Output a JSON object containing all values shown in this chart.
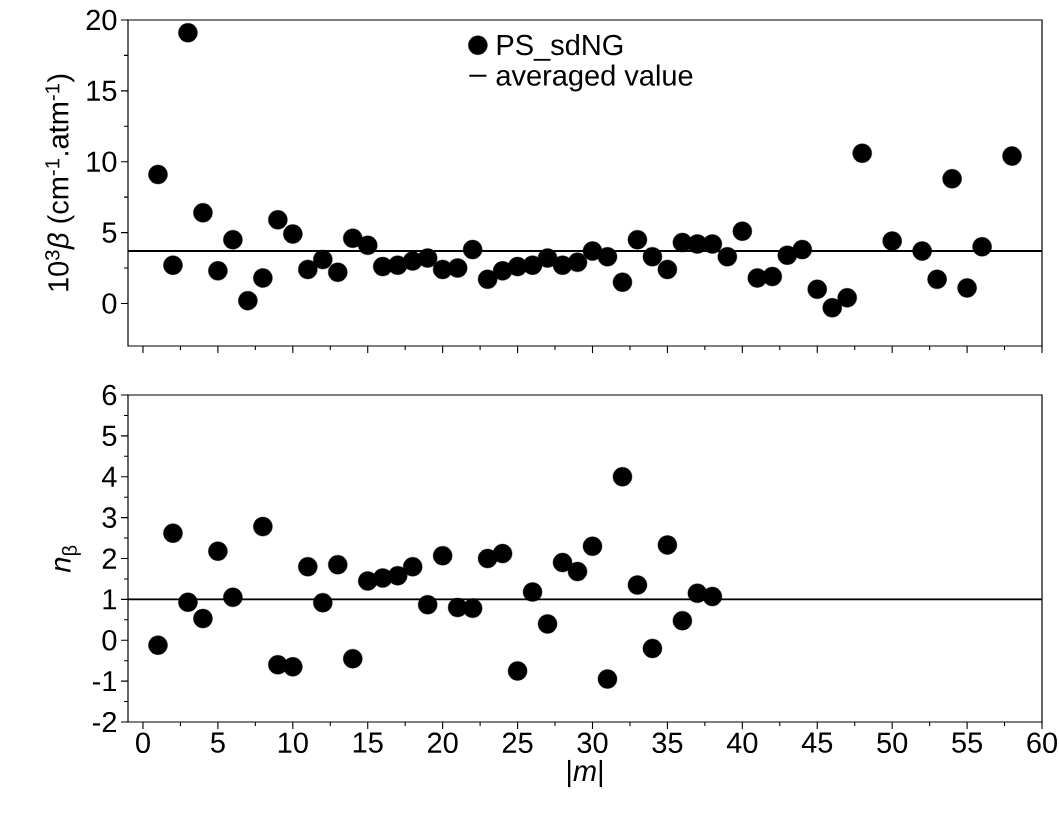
{
  "chart_data": [
    {
      "type": "scatter",
      "ylabel": "10$^{3}$*β* (cm$^{-1}$.atm$^{-1}$)",
      "xlim": [
        -1,
        60
      ],
      "xticks": [
        0,
        5,
        10,
        15,
        20,
        25,
        30,
        35,
        40,
        45,
        50,
        55,
        60
      ],
      "ylim": [
        -3,
        20
      ],
      "yticks": [
        0,
        5,
        10,
        15,
        20
      ],
      "tick_labels": "y",
      "marker": "circle",
      "legend": "top",
      "series": [
        {
          "name": "PS_sdNG",
          "color": "#000000",
          "x": [
            1,
            2,
            3,
            4,
            5,
            6,
            7,
            8,
            9,
            10,
            11,
            12,
            13,
            14,
            15,
            16,
            17,
            18,
            19,
            20,
            21,
            22,
            23,
            24,
            25,
            26,
            27,
            28,
            29,
            30,
            31,
            32,
            33,
            34,
            35,
            36,
            37,
            38,
            39,
            40,
            41,
            42,
            43,
            44,
            45,
            46,
            47,
            48,
            50,
            52,
            53,
            54,
            55,
            56,
            58
          ],
          "values": [
            9.1,
            2.7,
            19.1,
            6.4,
            2.3,
            4.5,
            0.2,
            1.8,
            5.9,
            4.9,
            2.4,
            3.1,
            2.2,
            4.6,
            4.1,
            2.6,
            2.7,
            3.0,
            3.2,
            2.4,
            2.5,
            3.8,
            1.7,
            2.3,
            2.6,
            2.7,
            3.2,
            2.7,
            2.9,
            3.7,
            3.3,
            1.5,
            4.5,
            3.3,
            2.4,
            4.3,
            4.2,
            4.2,
            3.3,
            5.1,
            1.8,
            1.9,
            3.4,
            3.8,
            1.0,
            -0.3,
            0.4,
            10.6,
            4.4,
            3.7,
            1.7,
            8.8,
            1.1,
            4.0,
            10.4
          ]
        }
      ],
      "ref_lines": [
        {
          "axis": "y",
          "value": 3.7,
          "label": "averaged value",
          "color": "#000000"
        }
      ]
    },
    {
      "type": "scatter",
      "ylabel": "*n*$_{β}$",
      "xlabel": "|*m*|",
      "xlim": [
        -1,
        60
      ],
      "xticks": [
        0,
        5,
        10,
        15,
        20,
        25,
        30,
        35,
        40,
        45,
        50,
        55,
        60
      ],
      "ylim": [
        -2,
        6
      ],
      "yticks": [
        -2,
        -1,
        0,
        1,
        2,
        3,
        4,
        5,
        6
      ],
      "marker": "circle",
      "series": [
        {
          "color": "#000000",
          "x": [
            1,
            2,
            3,
            4,
            5,
            6,
            8,
            9,
            10,
            11,
            12,
            13,
            14,
            15,
            16,
            17,
            18,
            19,
            20,
            21,
            22,
            23,
            24,
            25,
            26,
            27,
            28,
            29,
            30,
            31,
            32,
            33,
            34,
            35,
            36,
            37,
            38
          ],
          "values": [
            -0.12,
            2.62,
            0.93,
            0.53,
            2.18,
            1.05,
            2.78,
            -0.6,
            -0.65,
            1.8,
            0.92,
            1.85,
            -0.45,
            1.45,
            1.52,
            1.58,
            1.8,
            0.87,
            2.07,
            0.8,
            0.78,
            2.0,
            2.12,
            -0.75,
            1.18,
            0.4,
            1.9,
            1.68,
            2.3,
            -0.95,
            4.0,
            1.35,
            -0.2,
            2.33,
            0.48,
            1.15,
            1.07
          ]
        }
      ],
      "ref_lines": [
        {
          "axis": "y",
          "value": 1,
          "color": "#000000"
        }
      ]
    }
  ]
}
